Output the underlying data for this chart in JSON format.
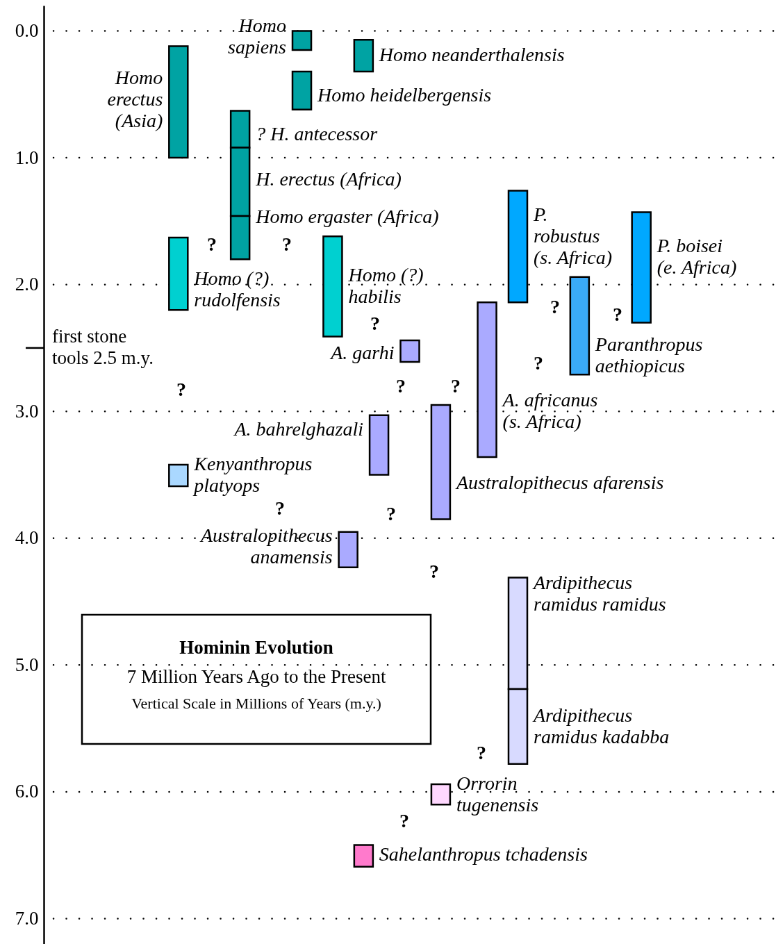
{
  "chart_data": {
    "type": "bar",
    "title": "Hominin Evolution",
    "subtitle": "7 Million Years Ago to the Present",
    "categories": [
      null,
      null,
      null,
      null,
      null,
      null,
      null,
      null,
      null,
      null,
      null,
      null,
      null,
      null,
      null,
      null,
      null,
      null,
      null,
      null,
      null,
      null,
      null,
      null,
      null,
      null,
      null,
      null,
      null,
      null,
      null,
      null,
      null,
      null,
      null,
      null,
      null,
      null,
      null,
      null,
      null,
      null,
      null,
      null,
      null,
      null,
      null
    ],
    "ref_lines": [
      {
        "axis": "y",
        "value": 2.5,
        "label": "first stone\ntools 2.5 m.y."
      }
    ],
    "ylim": [
      7.2,
      -0.2
    ],
    "tick_labels": "y",
    "grid": "y",
    "yticks": [
      {
        "value": 0,
        "label": "0.0"
      },
      {
        "value": 1,
        "label": "1.0"
      },
      {
        "value": 2,
        "label": "2.0"
      },
      {
        "value": 3,
        "label": "3.0"
      },
      {
        "value": 4,
        "label": "4.0"
      },
      {
        "value": 5,
        "label": "5.0"
      },
      {
        "value": 6,
        "label": "6.0"
      },
      {
        "value": 7,
        "label": "7.0"
      }
    ],
    "series": [
      {
        "name": "Homo\nsapiens",
        "color": "#00a3a3",
        "values": [
          null,
          null,
          null,
          null,
          null,
          null,
          null,
          null,
          null,
          null,
          null,
          null,
          null,
          null,
          null,
          null,
          0.15,
          null,
          null,
          null,
          null,
          null,
          null,
          null,
          null,
          null,
          null,
          null,
          null,
          null,
          null,
          null,
          null,
          null,
          null,
          null,
          null,
          null,
          null,
          null,
          null,
          null,
          null,
          null,
          null,
          null,
          null
        ],
        "base": [
          null,
          null,
          null,
          null,
          null,
          null,
          null,
          null,
          null,
          null,
          null,
          null,
          null,
          null,
          null,
          null,
          0,
          null,
          null,
          null,
          null,
          null,
          null,
          null,
          null,
          null,
          null,
          null,
          null,
          null,
          null,
          null,
          null,
          null,
          null,
          null,
          null,
          null,
          null,
          null,
          null,
          null,
          null,
          null,
          null,
          null,
          null
        ]
      },
      {
        "name": "Homo neanderthalensis",
        "color": "#00a3a3",
        "values": [
          null,
          null,
          null,
          null,
          null,
          null,
          null,
          null,
          null,
          null,
          null,
          null,
          null,
          null,
          null,
          null,
          null,
          null,
          null,
          null,
          0.25,
          null,
          null,
          null,
          null,
          null,
          null,
          null,
          null,
          null,
          null,
          null,
          null,
          null,
          null,
          null,
          null,
          null,
          null,
          null,
          null,
          null,
          null,
          null,
          null,
          null,
          null
        ],
        "base": [
          null,
          null,
          null,
          null,
          null,
          null,
          null,
          null,
          null,
          null,
          null,
          null,
          null,
          null,
          null,
          null,
          null,
          null,
          null,
          null,
          0.07,
          null,
          null,
          null,
          null,
          null,
          null,
          null,
          null,
          null,
          null,
          null,
          null,
          null,
          null,
          null,
          null,
          null,
          null,
          null,
          null,
          null,
          null,
          null,
          null,
          null,
          null
        ]
      },
      {
        "name": "Homo heidelbergensis",
        "color": "#00a3a3",
        "values": [
          null,
          null,
          null,
          null,
          null,
          null,
          null,
          null,
          null,
          null,
          null,
          null,
          null,
          null,
          null,
          null,
          0.3,
          null,
          null,
          null,
          null,
          null,
          null,
          null,
          null,
          null,
          null,
          null,
          null,
          null,
          null,
          null,
          null,
          null,
          null,
          null,
          null,
          null,
          null,
          null,
          null,
          null,
          null,
          null,
          null,
          null,
          null
        ],
        "base": [
          null,
          null,
          null,
          null,
          null,
          null,
          null,
          null,
          null,
          null,
          null,
          null,
          null,
          null,
          null,
          null,
          0.32,
          null,
          null,
          null,
          null,
          null,
          null,
          null,
          null,
          null,
          null,
          null,
          null,
          null,
          null,
          null,
          null,
          null,
          null,
          null,
          null,
          null,
          null,
          null,
          null,
          null,
          null,
          null,
          null,
          null,
          null
        ]
      },
      {
        "name": "Homo\nerectus\n(Asia)",
        "color": "#00a3a3",
        "values": [
          null,
          null,
          null,
          null,
          null,
          null,
          null,
          null,
          0.88,
          null,
          null,
          null,
          null,
          null,
          null,
          null,
          null,
          null,
          null,
          null,
          null,
          null,
          null,
          null,
          null,
          null,
          null,
          null,
          null,
          null,
          null,
          null,
          null,
          null,
          null,
          null,
          null,
          null,
          null,
          null,
          null,
          null,
          null,
          null,
          null,
          null,
          null
        ],
        "base": [
          null,
          null,
          null,
          null,
          null,
          null,
          null,
          null,
          0.12,
          null,
          null,
          null,
          null,
          null,
          null,
          null,
          null,
          null,
          null,
          null,
          null,
          null,
          null,
          null,
          null,
          null,
          null,
          null,
          null,
          null,
          null,
          null,
          null,
          null,
          null,
          null,
          null,
          null,
          null,
          null,
          null,
          null,
          null,
          null,
          null,
          null,
          null
        ]
      },
      {
        "name": "? H. antecessor",
        "color": "#00a3a3",
        "values": [
          null,
          null,
          null,
          null,
          null,
          null,
          null,
          null,
          null,
          null,
          null,
          null,
          0.29,
          null,
          null,
          null,
          null,
          null,
          null,
          null,
          null,
          null,
          null,
          null,
          null,
          null,
          null,
          null,
          null,
          null,
          null,
          null,
          null,
          null,
          null,
          null,
          null,
          null,
          null,
          null,
          null,
          null,
          null,
          null,
          null,
          null,
          null
        ],
        "base": [
          null,
          null,
          null,
          null,
          null,
          null,
          null,
          null,
          null,
          null,
          null,
          null,
          0.63,
          null,
          null,
          null,
          null,
          null,
          null,
          null,
          null,
          null,
          null,
          null,
          null,
          null,
          null,
          null,
          null,
          null,
          null,
          null,
          null,
          null,
          null,
          null,
          null,
          null,
          null,
          null,
          null,
          null,
          null,
          null,
          null,
          null,
          null
        ]
      },
      {
        "name": "H. erectus (Africa)",
        "color": "#00a3a3",
        "values": [
          null,
          null,
          null,
          null,
          null,
          null,
          null,
          null,
          null,
          null,
          null,
          null,
          0.54,
          null,
          null,
          null,
          null,
          null,
          null,
          null,
          null,
          null,
          null,
          null,
          null,
          null,
          null,
          null,
          null,
          null,
          null,
          null,
          null,
          null,
          null,
          null,
          null,
          null,
          null,
          null,
          null,
          null,
          null,
          null,
          null,
          null,
          null
        ],
        "base": [
          null,
          null,
          null,
          null,
          null,
          null,
          null,
          null,
          null,
          null,
          null,
          null,
          0.92,
          null,
          null,
          null,
          null,
          null,
          null,
          null,
          null,
          null,
          null,
          null,
          null,
          null,
          null,
          null,
          null,
          null,
          null,
          null,
          null,
          null,
          null,
          null,
          null,
          null,
          null,
          null,
          null,
          null,
          null,
          null,
          null,
          null,
          null
        ]
      },
      {
        "name": "Homo ergaster (Africa)",
        "color": "#00a3a3",
        "values": [
          null,
          null,
          null,
          null,
          null,
          null,
          null,
          null,
          null,
          null,
          null,
          null,
          0.34,
          null,
          null,
          null,
          null,
          null,
          null,
          null,
          null,
          null,
          null,
          null,
          null,
          null,
          null,
          null,
          null,
          null,
          null,
          null,
          null,
          null,
          null,
          null,
          null,
          null,
          null,
          null,
          null,
          null,
          null,
          null,
          null,
          null,
          null
        ],
        "base": [
          null,
          null,
          null,
          null,
          null,
          null,
          null,
          null,
          null,
          null,
          null,
          null,
          1.46,
          null,
          null,
          null,
          null,
          null,
          null,
          null,
          null,
          null,
          null,
          null,
          null,
          null,
          null,
          null,
          null,
          null,
          null,
          null,
          null,
          null,
          null,
          null,
          null,
          null,
          null,
          null,
          null,
          null,
          null,
          null,
          null,
          null,
          null
        ]
      },
      {
        "name": "Homo (?)\nrudolfensis",
        "color": "#00d0d0",
        "values": [
          null,
          null,
          null,
          null,
          null,
          null,
          null,
          null,
          0.57,
          null,
          null,
          null,
          null,
          null,
          null,
          null,
          null,
          null,
          null,
          null,
          null,
          null,
          null,
          null,
          null,
          null,
          null,
          null,
          null,
          null,
          null,
          null,
          null,
          null,
          null,
          null,
          null,
          null,
          null,
          null,
          null,
          null,
          null,
          null,
          null,
          null,
          null
        ],
        "base": [
          null,
          null,
          null,
          null,
          null,
          null,
          null,
          null,
          1.63,
          null,
          null,
          null,
          null,
          null,
          null,
          null,
          null,
          null,
          null,
          null,
          null,
          null,
          null,
          null,
          null,
          null,
          null,
          null,
          null,
          null,
          null,
          null,
          null,
          null,
          null,
          null,
          null,
          null,
          null,
          null,
          null,
          null,
          null,
          null,
          null,
          null,
          null
        ]
      },
      {
        "name": "Homo (?)\nhabilis",
        "color": "#00d0d0",
        "values": [
          null,
          null,
          null,
          null,
          null,
          null,
          null,
          null,
          null,
          null,
          null,
          null,
          null,
          null,
          null,
          null,
          null,
          null,
          0.79,
          null,
          null,
          null,
          null,
          null,
          null,
          null,
          null,
          null,
          null,
          null,
          null,
          null,
          null,
          null,
          null,
          null,
          null,
          null,
          null,
          null,
          null,
          null,
          null,
          null,
          null,
          null,
          null
        ],
        "base": [
          null,
          null,
          null,
          null,
          null,
          null,
          null,
          null,
          null,
          null,
          null,
          null,
          null,
          null,
          null,
          null,
          null,
          null,
          1.62,
          null,
          null,
          null,
          null,
          null,
          null,
          null,
          null,
          null,
          null,
          null,
          null,
          null,
          null,
          null,
          null,
          null,
          null,
          null,
          null,
          null,
          null,
          null,
          null,
          null,
          null,
          null,
          null
        ]
      },
      {
        "name": "A. garhi",
        "color": "#aaaaff",
        "values": [
          null,
          null,
          null,
          null,
          null,
          null,
          null,
          null,
          null,
          null,
          null,
          null,
          null,
          null,
          null,
          null,
          null,
          null,
          null,
          null,
          null,
          null,
          null,
          0.17,
          null,
          null,
          null,
          null,
          null,
          null,
          null,
          null,
          null,
          null,
          null,
          null,
          null,
          null,
          null,
          null,
          null,
          null,
          null,
          null,
          null,
          null,
          null
        ],
        "base": [
          null,
          null,
          null,
          null,
          null,
          null,
          null,
          null,
          null,
          null,
          null,
          null,
          null,
          null,
          null,
          null,
          null,
          null,
          null,
          null,
          null,
          null,
          null,
          2.44,
          null,
          null,
          null,
          null,
          null,
          null,
          null,
          null,
          null,
          null,
          null,
          null,
          null,
          null,
          null,
          null,
          null,
          null,
          null,
          null,
          null,
          null,
          null
        ]
      },
      {
        "name": "Kenyanthropus\nplatyops",
        "color": "#aad8ff",
        "values": [
          null,
          null,
          null,
          null,
          null,
          null,
          null,
          null,
          0.17,
          null,
          null,
          null,
          null,
          null,
          null,
          null,
          null,
          null,
          null,
          null,
          null,
          null,
          null,
          null,
          null,
          null,
          null,
          null,
          null,
          null,
          null,
          null,
          null,
          null,
          null,
          null,
          null,
          null,
          null,
          null,
          null,
          null,
          null,
          null,
          null,
          null,
          null
        ],
        "base": [
          null,
          null,
          null,
          null,
          null,
          null,
          null,
          null,
          3.42,
          null,
          null,
          null,
          null,
          null,
          null,
          null,
          null,
          null,
          null,
          null,
          null,
          null,
          null,
          null,
          null,
          null,
          null,
          null,
          null,
          null,
          null,
          null,
          null,
          null,
          null,
          null,
          null,
          null,
          null,
          null,
          null,
          null,
          null,
          null,
          null,
          null,
          null
        ]
      },
      {
        "name": "A. bahrelghazali",
        "color": "#aaaaff",
        "values": [
          null,
          null,
          null,
          null,
          null,
          null,
          null,
          null,
          null,
          null,
          null,
          null,
          null,
          null,
          null,
          null,
          null,
          null,
          null,
          null,
          null,
          0.47,
          null,
          null,
          null,
          null,
          null,
          null,
          null,
          null,
          null,
          null,
          null,
          null,
          null,
          null,
          null,
          null,
          null,
          null,
          null,
          null,
          null,
          null,
          null,
          null,
          null
        ],
        "base": [
          null,
          null,
          null,
          null,
          null,
          null,
          null,
          null,
          null,
          null,
          null,
          null,
          null,
          null,
          null,
          null,
          null,
          null,
          null,
          null,
          null,
          3.03,
          null,
          null,
          null,
          null,
          null,
          null,
          null,
          null,
          null,
          null,
          null,
          null,
          null,
          null,
          null,
          null,
          null,
          null,
          null,
          null,
          null,
          null,
          null,
          null,
          null
        ]
      },
      {
        "name": "Australopithecus afarensis",
        "color": "#aaaaff",
        "values": [
          null,
          null,
          null,
          null,
          null,
          null,
          null,
          null,
          null,
          null,
          null,
          null,
          null,
          null,
          null,
          null,
          null,
          null,
          null,
          null,
          null,
          null,
          null,
          null,
          null,
          0.9,
          null,
          null,
          null,
          null,
          null,
          null,
          null,
          null,
          null,
          null,
          null,
          null,
          null,
          null,
          null,
          null,
          null,
          null,
          null,
          null,
          null
        ],
        "base": [
          null,
          null,
          null,
          null,
          null,
          null,
          null,
          null,
          null,
          null,
          null,
          null,
          null,
          null,
          null,
          null,
          null,
          null,
          null,
          null,
          null,
          null,
          null,
          null,
          null,
          2.95,
          null,
          null,
          null,
          null,
          null,
          null,
          null,
          null,
          null,
          null,
          null,
          null,
          null,
          null,
          null,
          null,
          null,
          null,
          null,
          null,
          null
        ]
      },
      {
        "name": "Australopithecus\nanamensis",
        "color": "#aaaaff",
        "values": [
          null,
          null,
          null,
          null,
          null,
          null,
          null,
          null,
          null,
          null,
          null,
          null,
          null,
          null,
          null,
          null,
          null,
          null,
          null,
          0.28,
          null,
          null,
          null,
          null,
          null,
          null,
          null,
          null,
          null,
          null,
          null,
          null,
          null,
          null,
          null,
          null,
          null,
          null,
          null,
          null,
          null,
          null,
          null,
          null,
          null,
          null,
          null
        ],
        "base": [
          null,
          null,
          null,
          null,
          null,
          null,
          null,
          null,
          null,
          null,
          null,
          null,
          null,
          null,
          null,
          null,
          null,
          null,
          null,
          3.95,
          null,
          null,
          null,
          null,
          null,
          null,
          null,
          null,
          null,
          null,
          null,
          null,
          null,
          null,
          null,
          null,
          null,
          null,
          null,
          null,
          null,
          null,
          null,
          null,
          null,
          null,
          null
        ]
      },
      {
        "name": "A. africanus\n(s. Africa)",
        "color": "#aaaaff",
        "values": [
          null,
          null,
          null,
          null,
          null,
          null,
          null,
          null,
          null,
          null,
          null,
          null,
          null,
          null,
          null,
          null,
          null,
          null,
          null,
          null,
          null,
          null,
          null,
          null,
          null,
          null,
          null,
          null,
          1.22,
          null,
          null,
          null,
          null,
          null,
          null,
          null,
          null,
          null,
          null,
          null,
          null,
          null,
          null,
          null,
          null,
          null,
          null
        ],
        "base": [
          null,
          null,
          null,
          null,
          null,
          null,
          null,
          null,
          null,
          null,
          null,
          null,
          null,
          null,
          null,
          null,
          null,
          null,
          null,
          null,
          null,
          null,
          null,
          null,
          null,
          null,
          null,
          null,
          2.14,
          null,
          null,
          null,
          null,
          null,
          null,
          null,
          null,
          null,
          null,
          null,
          null,
          null,
          null,
          null,
          null,
          null,
          null
        ]
      },
      {
        "name": "P.\nrobustus\n(s. Africa)",
        "color": "#00a8ff",
        "values": [
          null,
          null,
          null,
          null,
          null,
          null,
          null,
          null,
          null,
          null,
          null,
          null,
          null,
          null,
          null,
          null,
          null,
          null,
          null,
          null,
          null,
          null,
          null,
          null,
          null,
          null,
          null,
          null,
          null,
          null,
          0.88,
          null,
          null,
          null,
          null,
          null,
          null,
          null,
          null,
          null,
          null,
          null,
          null,
          null,
          null,
          null,
          null
        ],
        "base": [
          null,
          null,
          null,
          null,
          null,
          null,
          null,
          null,
          null,
          null,
          null,
          null,
          null,
          null,
          null,
          null,
          null,
          null,
          null,
          null,
          null,
          null,
          null,
          null,
          null,
          null,
          null,
          null,
          null,
          null,
          1.26,
          null,
          null,
          null,
          null,
          null,
          null,
          null,
          null,
          null,
          null,
          null,
          null,
          null,
          null,
          null,
          null
        ]
      },
      {
        "name": "Paranthropus\naethiopicus",
        "color": "#3aaaf8",
        "values": [
          null,
          null,
          null,
          null,
          null,
          null,
          null,
          null,
          null,
          null,
          null,
          null,
          null,
          null,
          null,
          null,
          null,
          null,
          null,
          null,
          null,
          null,
          null,
          null,
          null,
          null,
          null,
          null,
          null,
          null,
          null,
          null,
          null,
          null,
          0.77,
          null,
          null,
          null,
          null,
          null,
          null,
          null,
          null,
          null,
          null,
          null,
          null
        ],
        "base": [
          null,
          null,
          null,
          null,
          null,
          null,
          null,
          null,
          null,
          null,
          null,
          null,
          null,
          null,
          null,
          null,
          null,
          null,
          null,
          null,
          null,
          null,
          null,
          null,
          null,
          null,
          null,
          null,
          null,
          null,
          null,
          null,
          null,
          null,
          1.94,
          null,
          null,
          null,
          null,
          null,
          null,
          null,
          null,
          null,
          null,
          null,
          null
        ]
      },
      {
        "name": "P. boisei\n(e. Africa)",
        "color": "#00a8ff",
        "values": [
          null,
          null,
          null,
          null,
          null,
          null,
          null,
          null,
          null,
          null,
          null,
          null,
          null,
          null,
          null,
          null,
          null,
          null,
          null,
          null,
          null,
          null,
          null,
          null,
          null,
          null,
          null,
          null,
          null,
          null,
          null,
          null,
          null,
          null,
          null,
          null,
          null,
          null,
          0.87,
          null,
          null,
          null,
          null,
          null,
          null,
          null,
          null
        ],
        "base": [
          null,
          null,
          null,
          null,
          null,
          null,
          null,
          null,
          null,
          null,
          null,
          null,
          null,
          null,
          null,
          null,
          null,
          null,
          null,
          null,
          null,
          null,
          null,
          null,
          null,
          null,
          null,
          null,
          null,
          null,
          null,
          null,
          null,
          null,
          null,
          null,
          null,
          null,
          1.43,
          null,
          null,
          null,
          null,
          null,
          null,
          null,
          null
        ]
      },
      {
        "name": "Ardipithecus\nramidus ramidus",
        "color": "#d8daff",
        "values": [
          null,
          null,
          null,
          null,
          null,
          null,
          null,
          null,
          null,
          null,
          null,
          null,
          null,
          null,
          null,
          null,
          null,
          null,
          null,
          null,
          null,
          null,
          null,
          null,
          null,
          null,
          null,
          null,
          null,
          null,
          0.88,
          null,
          null,
          null,
          null,
          null,
          null,
          null,
          null,
          null,
          null,
          null,
          null,
          null,
          null,
          null,
          null
        ],
        "base": [
          null,
          null,
          null,
          null,
          null,
          null,
          null,
          null,
          null,
          null,
          null,
          null,
          null,
          null,
          null,
          null,
          null,
          null,
          null,
          null,
          null,
          null,
          null,
          null,
          null,
          null,
          null,
          null,
          null,
          null,
          4.31,
          null,
          null,
          null,
          null,
          null,
          null,
          null,
          null,
          null,
          null,
          null,
          null,
          null,
          null,
          null,
          null
        ]
      },
      {
        "name": "Ardipithecus\nramidus kadabba",
        "color": "#d8daff",
        "values": [
          null,
          null,
          null,
          null,
          null,
          null,
          null,
          null,
          null,
          null,
          null,
          null,
          null,
          null,
          null,
          null,
          null,
          null,
          null,
          null,
          null,
          null,
          null,
          null,
          null,
          null,
          null,
          null,
          null,
          null,
          0.59,
          null,
          null,
          null,
          null,
          null,
          null,
          null,
          null,
          null,
          null,
          null,
          null,
          null,
          null,
          null,
          null
        ],
        "base": [
          null,
          null,
          null,
          null,
          null,
          null,
          null,
          null,
          null,
          null,
          null,
          null,
          null,
          null,
          null,
          null,
          null,
          null,
          null,
          null,
          null,
          null,
          null,
          null,
          null,
          null,
          null,
          null,
          null,
          null,
          5.19,
          null,
          null,
          null,
          null,
          null,
          null,
          null,
          null,
          null,
          null,
          null,
          null,
          null,
          null,
          null,
          null
        ]
      },
      {
        "name": "Orrorin\ntugenensis",
        "color": "#ffd8ff",
        "values": [
          null,
          null,
          null,
          null,
          null,
          null,
          null,
          null,
          null,
          null,
          null,
          null,
          null,
          null,
          null,
          null,
          null,
          null,
          null,
          null,
          null,
          null,
          null,
          null,
          null,
          0.16,
          null,
          null,
          null,
          null,
          null,
          null,
          null,
          null,
          null,
          null,
          null,
          null,
          null,
          null,
          null,
          null,
          null,
          null,
          null,
          null,
          null
        ],
        "base": [
          null,
          null,
          null,
          null,
          null,
          null,
          null,
          null,
          null,
          null,
          null,
          null,
          null,
          null,
          null,
          null,
          null,
          null,
          null,
          null,
          null,
          null,
          null,
          null,
          null,
          5.94,
          null,
          null,
          null,
          null,
          null,
          null,
          null,
          null,
          null,
          null,
          null,
          null,
          null,
          null,
          null,
          null,
          null,
          null,
          null,
          null,
          null
        ]
      },
      {
        "name": "Sahelanthropus tchadensis",
        "color": "#ff7acc",
        "values": [
          null,
          null,
          null,
          null,
          null,
          null,
          null,
          null,
          null,
          null,
          null,
          null,
          null,
          null,
          null,
          null,
          null,
          null,
          null,
          null,
          0.17,
          null,
          null,
          null,
          null,
          null,
          null,
          null,
          null,
          null,
          null,
          null,
          null,
          null,
          null,
          null,
          null,
          null,
          null,
          null,
          null,
          null,
          null,
          null,
          null,
          null,
          null
        ],
        "base": [
          null,
          null,
          null,
          null,
          null,
          null,
          null,
          null,
          null,
          null,
          null,
          null,
          null,
          null,
          null,
          null,
          null,
          null,
          null,
          null,
          6.42,
          null,
          null,
          null,
          null,
          null,
          null,
          null,
          null,
          null,
          null,
          null,
          null,
          null,
          null,
          null,
          null,
          null,
          null,
          null,
          null,
          null,
          null,
          null,
          null,
          null,
          null
        ]
      }
    ],
    "annotations": [
      "Vertical Scale in Millions of Years (m.y.)",
      "?",
      "?",
      "?",
      "?",
      "?",
      "?",
      "?",
      "?",
      "?",
      "?",
      "?",
      "?",
      "?",
      "?"
    ]
  }
}
